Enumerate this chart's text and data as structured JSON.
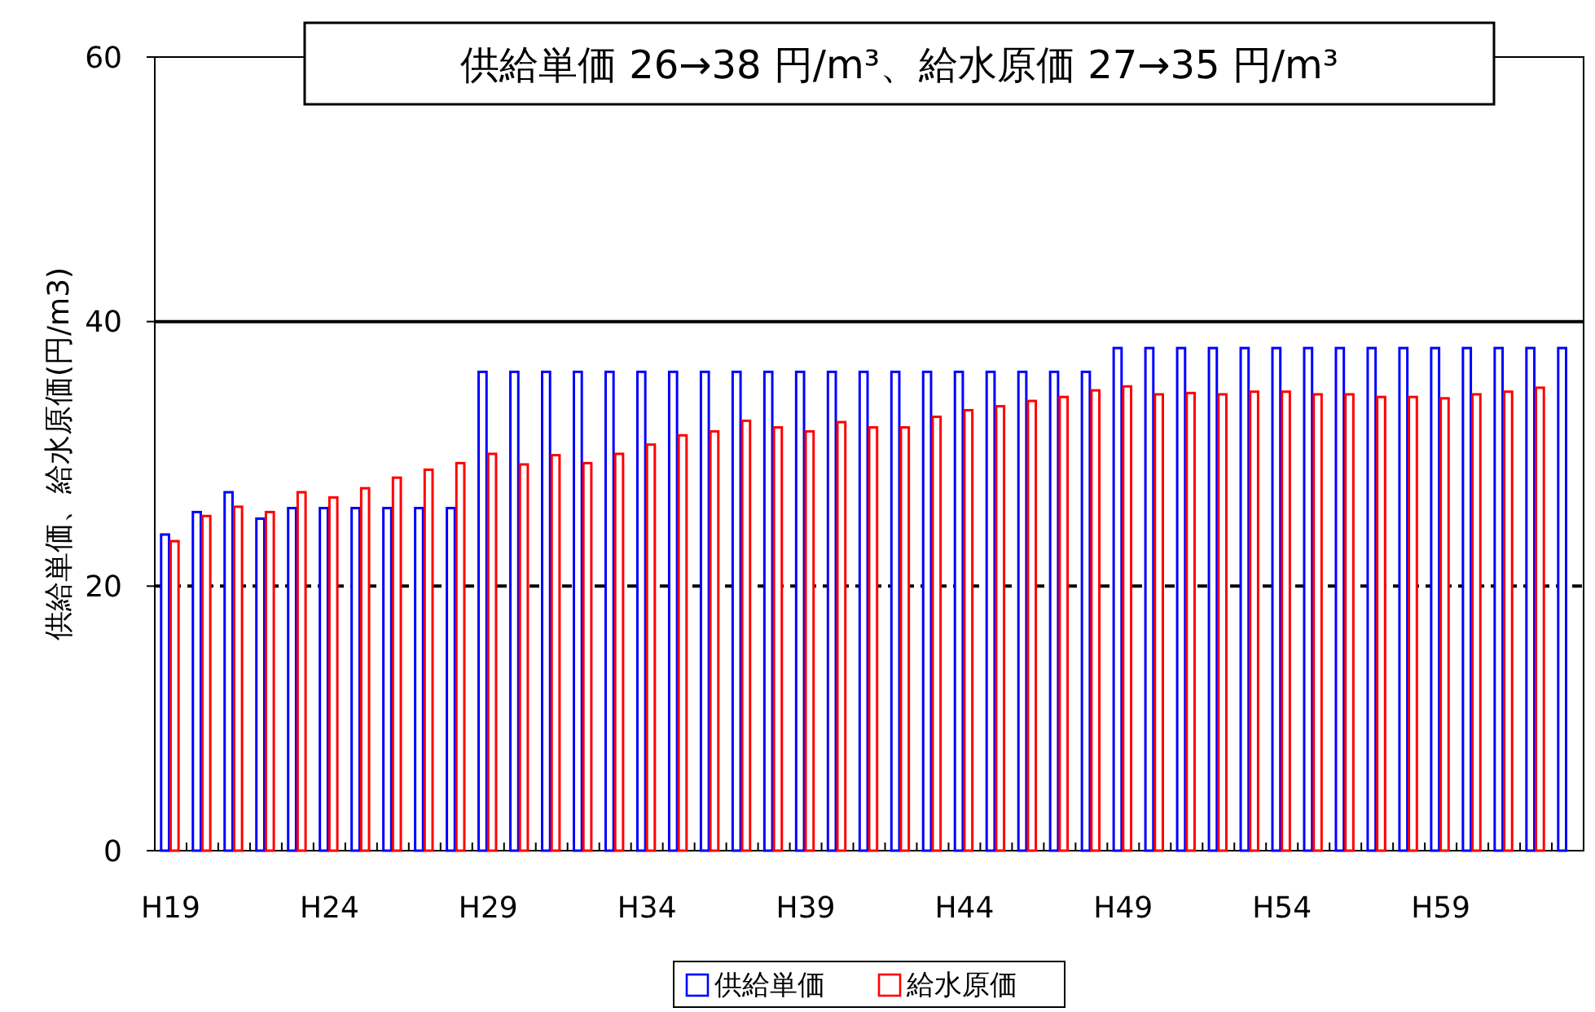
{
  "chart_data": {
    "type": "bar",
    "title": "供給単価 26→38 円/m³、給水原価 27→35 円/m³",
    "ylabel": "供給単価、給水原価(円/m3)",
    "categories": [
      "H19",
      null,
      null,
      null,
      null,
      "H24",
      null,
      null,
      null,
      null,
      "H29",
      null,
      null,
      null,
      null,
      "H34",
      null,
      null,
      null,
      null,
      "H39",
      null,
      null,
      null,
      null,
      "H44",
      null,
      null,
      null,
      null,
      "H49",
      null,
      null,
      null,
      null,
      "H54",
      null,
      null,
      null,
      null,
      "H59",
      null,
      null,
      null,
      null
    ],
    "series": [
      {
        "name": "供給単価",
        "color": "#0000ff",
        "values": [
          23.9,
          25.6,
          27.1,
          25.1,
          25.9,
          25.9,
          25.9,
          25.9,
          25.9,
          25.9,
          36.2,
          36.2,
          36.2,
          36.2,
          36.2,
          36.2,
          36.2,
          36.2,
          36.2,
          36.2,
          36.2,
          36.2,
          36.2,
          36.2,
          36.2,
          36.2,
          36.2,
          36.2,
          36.2,
          36.2,
          38,
          38,
          38,
          38,
          38,
          38,
          38,
          38,
          38,
          38,
          38,
          38,
          38,
          38,
          38
        ]
      },
      {
        "name": "給水原価",
        "color": "#ff0000",
        "values": [
          23.4,
          25.3,
          26.0,
          25.6,
          27.1,
          26.7,
          27.4,
          28.2,
          28.8,
          29.3,
          30.0,
          29.2,
          29.9,
          29.3,
          30.0,
          30.7,
          31.4,
          31.7,
          32.5,
          32.0,
          31.7,
          32.4,
          32.0,
          32.0,
          32.8,
          33.3,
          33.6,
          34.0,
          34.3,
          34.8,
          35.1,
          34.5,
          34.6,
          34.5,
          34.7,
          34.7,
          34.5,
          34.5,
          34.3,
          34.3,
          34.2,
          34.5,
          34.7,
          35.0,
          null
        ]
      }
    ],
    "ylim": [
      0,
      60
    ],
    "yticks": [
      0,
      20,
      40,
      60
    ],
    "ref_lines": [
      {
        "axis": "y",
        "value": 20,
        "line_style": "dashed",
        "color": "#000000"
      },
      {
        "axis": "y",
        "value": 40,
        "line_style": "solid",
        "color": "#000000"
      }
    ],
    "legend": "bottom"
  }
}
